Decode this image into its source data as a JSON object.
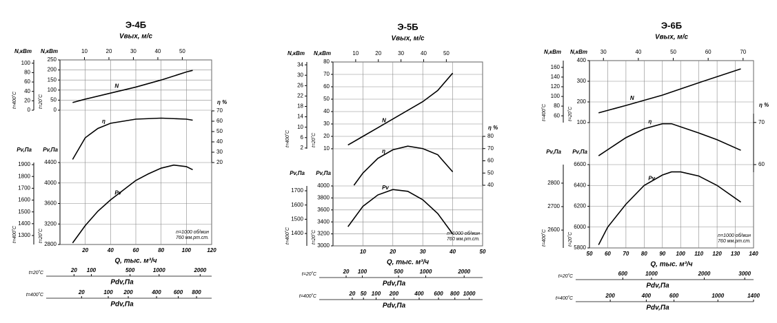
{
  "chart_data": [
    {
      "type": "line",
      "title": "Э-4Б",
      "top_axis": {
        "label": "Vвых, м/с",
        "xlim": [
          0,
          62
        ],
        "xticks": [
          10,
          20,
          30,
          40,
          50
        ]
      },
      "x_label": "Q, тыс. м³/ч",
      "xlim": [
        0,
        120
      ],
      "xticks": [
        20,
        40,
        60,
        80,
        100,
        120
      ],
      "grid": true,
      "axes": {
        "n400": {
          "label": "N,кВт",
          "temp": "t=400˚C",
          "ylim": [
            0,
            107
          ],
          "yticks": [
            0,
            20,
            40,
            60,
            80,
            100
          ]
        },
        "n20": {
          "label": "N,кВт",
          "temp": "t=20˚C",
          "ylim": [
            0,
            250
          ],
          "yticks": [
            0,
            50,
            100,
            150,
            200,
            250
          ]
        },
        "eta": {
          "label": "η %",
          "ylim": [
            20,
            70
          ],
          "yticks": [
            20,
            30,
            40,
            50,
            60,
            70
          ]
        },
        "pv400": {
          "label": "Pv,Па",
          "temp": "t=400˚C",
          "ylim": [
            1224,
            1918
          ],
          "yticks": [
            1300,
            1400,
            1500,
            1600,
            1700,
            1800,
            1900
          ]
        },
        "pv20": {
          "label": "Pv,Па",
          "temp": "t=20˚C",
          "ylim": [
            2800,
            4400
          ],
          "yticks": [
            2800,
            3200,
            3600,
            4000,
            4400
          ]
        }
      },
      "series": [
        {
          "name": "N",
          "axis": "n20",
          "color": "#000000",
          "x": [
            10,
            20,
            40,
            60,
            80,
            100,
            105
          ],
          "values": [
            38,
            55,
            85,
            115,
            150,
            190,
            198
          ]
        },
        {
          "name": "η",
          "axis": "eta",
          "color": "#000000",
          "x": [
            10,
            20,
            30,
            40,
            60,
            80,
            100,
            105
          ],
          "values": [
            23,
            44,
            53,
            58,
            62,
            63,
            62,
            61
          ]
        },
        {
          "name": "Pv",
          "axis": "pv20",
          "color": "#000000",
          "x": [
            10,
            20,
            30,
            40,
            50,
            60,
            70,
            80,
            90,
            100,
            105
          ],
          "values": [
            2830,
            3170,
            3450,
            3670,
            3860,
            4050,
            4180,
            4290,
            4350,
            4320,
            4260
          ]
        }
      ],
      "note": [
        "n=1000 об/мин",
        "760 мм.рт.ст."
      ],
      "pdv_scales": [
        {
          "temp": "t=20˚C",
          "label": "Pdv,Па",
          "scale": "sqrt",
          "xlim": [
            0,
            2341
          ],
          "xticks": [
            20,
            100,
            500,
            1000,
            2000
          ]
        },
        {
          "temp": "t=400˚C",
          "label": "Pdv,Па",
          "scale": "sqrt",
          "xlim": [
            0,
            987
          ],
          "xticks": [
            20,
            100,
            200,
            400,
            600,
            800
          ]
        }
      ]
    },
    {
      "type": "line",
      "title": "Э-5Б",
      "top_axis": {
        "label": "Vвых, м/с",
        "xlim": [
          0,
          66
        ],
        "xticks": [
          10,
          20,
          30,
          40,
          50
        ]
      },
      "x_label": "Q, тыс. м³/ч",
      "xlim": [
        0,
        50
      ],
      "xticks": [
        10,
        20,
        30,
        40,
        50
      ],
      "grid": true,
      "axes": {
        "n400": {
          "label": "N,кВт",
          "temp": "t=400˚C",
          "ylim": [
            1.7,
            35.1
          ],
          "yticks": [
            2,
            6,
            10,
            14,
            18,
            22,
            26,
            30,
            34
          ]
        },
        "n20": {
          "label": "N,кВт",
          "temp": "t=20˚C",
          "ylim": [
            10,
            80
          ],
          "yticks": [
            10,
            20,
            30,
            40,
            50,
            60,
            70,
            80
          ]
        },
        "eta": {
          "label": "η %",
          "ylim": [
            40,
            80
          ],
          "yticks": [
            40,
            50,
            60,
            70,
            80
          ]
        },
        "pv400": {
          "label": "Pv,Па",
          "temp": "t=400˚C",
          "ylim": [
            1313,
            1734
          ],
          "yticks": [
            1400,
            1500,
            1600,
            1700
          ]
        },
        "pv20": {
          "label": "Pv,Па",
          "temp": "t=20˚C",
          "ylim": [
            3000,
            4000
          ],
          "yticks": [
            3000,
            3200,
            3400,
            3600,
            3800,
            4000
          ]
        }
      },
      "series": [
        {
          "name": "N",
          "axis": "n20",
          "color": "#000000",
          "x": [
            5,
            10,
            15,
            20,
            25,
            30,
            35,
            40
          ],
          "values": [
            13,
            20,
            27,
            34,
            41,
            48,
            57,
            71
          ]
        },
        {
          "name": "η",
          "axis": "eta",
          "color": "#000000",
          "x": [
            7,
            10,
            15,
            20,
            25,
            30,
            35,
            40
          ],
          "values": [
            40,
            50,
            62,
            69,
            72,
            70,
            65,
            51
          ]
        },
        {
          "name": "Pv",
          "axis": "pv20",
          "color": "#000000",
          "x": [
            5,
            10,
            15,
            20,
            25,
            30,
            35,
            40
          ],
          "values": [
            3320,
            3660,
            3850,
            3940,
            3910,
            3770,
            3540,
            3200
          ]
        }
      ],
      "note": [
        "n=1000 об/мин",
        "760 мм.рт.ст."
      ],
      "pdv_scales": [
        {
          "temp": "t=20˚C",
          "label": "Pdv,Па",
          "scale": "sqrt",
          "xlim": [
            0,
            2603
          ],
          "xticks": [
            20,
            100,
            500,
            1000,
            2000
          ]
        },
        {
          "temp": "t=400˚C",
          "label": "Pdv,Па",
          "scale": "sqrt",
          "xlim": [
            0,
            1206
          ],
          "xticks": [
            20,
            50,
            100,
            200,
            400,
            600,
            800,
            1000
          ]
        }
      ]
    },
    {
      "type": "line",
      "title": "Э-6Б",
      "top_axis": {
        "label": "Vвых, м/с",
        "xlim": [
          26,
          73
        ],
        "xticks": [
          30,
          40,
          50,
          60,
          70
        ]
      },
      "x_label": "Q, тыс. м³/ч",
      "xlim": [
        50,
        140
      ],
      "xticks": [
        50,
        60,
        70,
        80,
        90,
        100,
        110,
        120,
        130,
        140
      ],
      "grid": true,
      "axes": {
        "n400": {
          "label": "N,кВт",
          "temp": "t=400˚C",
          "ylim": [
            46,
            174
          ],
          "yticks": [
            60,
            80,
            100,
            120,
            140,
            160
          ]
        },
        "n20": {
          "label": "N,кВт",
          "temp": "t=20˚C",
          "ylim": [
            100,
            400
          ],
          "yticks": [
            100,
            200,
            300,
            400
          ]
        },
        "eta": {
          "label": "η %",
          "ylim": [
            58.2,
            72.1
          ],
          "yticks": [
            60,
            70
          ]
        },
        "pv400": {
          "label": "Pv,Па",
          "temp": "t=400˚C",
          "ylim": [
            2524,
            2879
          ],
          "yticks": [
            2600,
            2700,
            2800
          ]
        },
        "pv20": {
          "label": "Pv,Па",
          "temp": "t=20˚C",
          "ylim": [
            5800,
            6600
          ],
          "yticks": [
            5800,
            6000,
            6200,
            6400,
            6600
          ]
        }
      },
      "series": [
        {
          "name": "N",
          "axis": "n20",
          "color": "#000000",
          "x": [
            55,
            70,
            90,
            110,
            133
          ],
          "values": [
            147,
            183,
            233,
            293,
            360
          ]
        },
        {
          "name": "η",
          "axis": "eta",
          "color": "#000000",
          "x": [
            55,
            70,
            80,
            90,
            95,
            110,
            120,
            133
          ],
          "values": [
            62.1,
            66.4,
            68.5,
            69.7,
            69.7,
            67.5,
            65.9,
            63.4
          ]
        },
        {
          "name": "Pv",
          "axis": "pv20",
          "color": "#000000",
          "x": [
            55,
            60,
            70,
            80,
            90,
            95,
            100,
            110,
            120,
            133
          ],
          "values": [
            5830,
            6000,
            6220,
            6400,
            6500,
            6530,
            6530,
            6490,
            6400,
            6240
          ]
        }
      ],
      "note": [
        "n=1000 об/мин",
        "760 мм.рт.ст."
      ],
      "pdv_scales": [
        {
          "temp": "t=20˚C",
          "label": "Pdv,Па",
          "scale": "sqrt",
          "xlim": [
            263,
            3245
          ],
          "xticks": [
            600,
            1000,
            2000,
            3000
          ]
        },
        {
          "temp": "t=400˚C",
          "label": "Pdv,Па",
          "scale": "sqrt",
          "xlim": [
            116,
            1400
          ],
          "xticks": [
            200,
            400,
            600,
            1000,
            1400
          ]
        }
      ]
    }
  ]
}
